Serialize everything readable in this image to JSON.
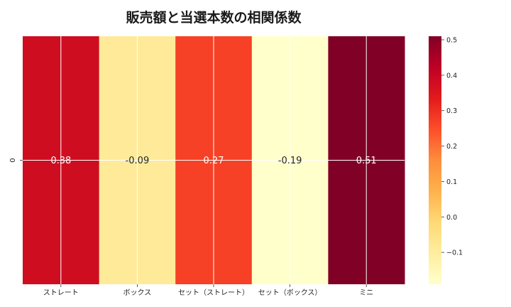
{
  "chart_data": {
    "type": "heatmap",
    "title": "販売額と当選本数の相関係数",
    "columns": [
      "ストレート",
      "ボックス",
      "セット（ストレート）",
      "セット（ボックス）",
      "ミニ"
    ],
    "rows": [
      "0"
    ],
    "values": [
      [
        0.38,
        -0.09,
        0.27,
        -0.19,
        0.51
      ]
    ],
    "value_labels": [
      "0.38",
      "-0.09",
      "0.27",
      "-0.19",
      "0.51"
    ],
    "colormap": "YlOrRd",
    "vmin": -0.19,
    "vmax": 0.51,
    "colorbar_ticks": [
      0.5,
      0.4,
      0.3,
      0.2,
      0.1,
      0.0,
      -0.1
    ],
    "colorbar_tick_labels": [
      "0.5",
      "0.4",
      "0.3",
      "0.2",
      "0.1",
      "0.0",
      "−0.1"
    ],
    "grid": true
  }
}
